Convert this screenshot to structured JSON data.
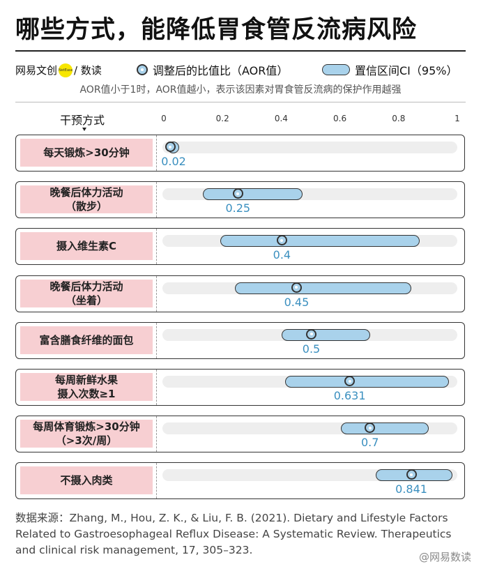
{
  "title": "哪些方式，能降低胃食管反流病风险",
  "brand": {
    "left": "网易文创",
    "dot": "NetEase",
    "right": "/ 数读"
  },
  "legend": {
    "point_label": "调整后的比值比（AOR值）",
    "ci_label": "置信区间CI（95%）"
  },
  "note": "AOR值小于1时，AOR值越小，表示该因素对胃食管反流病的保护作用越强",
  "colors": {
    "point": "#a9d2eb",
    "ci": "#a9d2eb",
    "label_bg": "#f7cfd2",
    "value_text": "#3a8fbf",
    "track": "#eeeeee"
  },
  "chart_data": {
    "type": "forest",
    "column_header": "干预方式",
    "xlim": [
      0,
      1
    ],
    "ticks": [
      "0",
      "0.2",
      "0.4",
      "0.6",
      "0.8",
      "1"
    ],
    "rows": [
      {
        "label": "每天锻炼>30分钟",
        "aor": 0.02,
        "aor_label": "0.02",
        "ci": [
          0.01,
          0.04
        ]
      },
      {
        "label": "晚餐后体力活动\n（散步）",
        "aor": 0.25,
        "aor_label": "0.25",
        "ci": [
          0.13,
          0.47
        ]
      },
      {
        "label": "摄入维生素C",
        "aor": 0.4,
        "aor_label": "0.4",
        "ci": [
          0.19,
          0.87
        ]
      },
      {
        "label": "晚餐后体力活动\n（坐着）",
        "aor": 0.45,
        "aor_label": "0.45",
        "ci": [
          0.24,
          0.84
        ]
      },
      {
        "label": "富含膳食纤维的面包",
        "aor": 0.5,
        "aor_label": "0.5",
        "ci": [
          0.4,
          0.7
        ]
      },
      {
        "label": "每周新鲜水果\n摄入次数≥1",
        "aor": 0.631,
        "aor_label": "0.631",
        "ci": [
          0.41,
          0.97
        ]
      },
      {
        "label": "每周体育锻炼>30分钟\n（>3次/周）",
        "aor": 0.7,
        "aor_label": "0.7",
        "ci": [
          0.6,
          0.9
        ]
      },
      {
        "label": "不摄入肉类",
        "aor": 0.841,
        "aor_label": "0.841",
        "ci": [
          0.72,
          0.98
        ]
      }
    ]
  },
  "source": "数据来源：Zhang, M., Hou, Z. K., & Liu, F. B. (2021). Dietary and Lifestyle Factors Related to Gastroesophageal Reflux Disease: A Systematic Review. Therapeutics and clinical risk management, 17, 305–323.",
  "watermark": "@网易数读"
}
